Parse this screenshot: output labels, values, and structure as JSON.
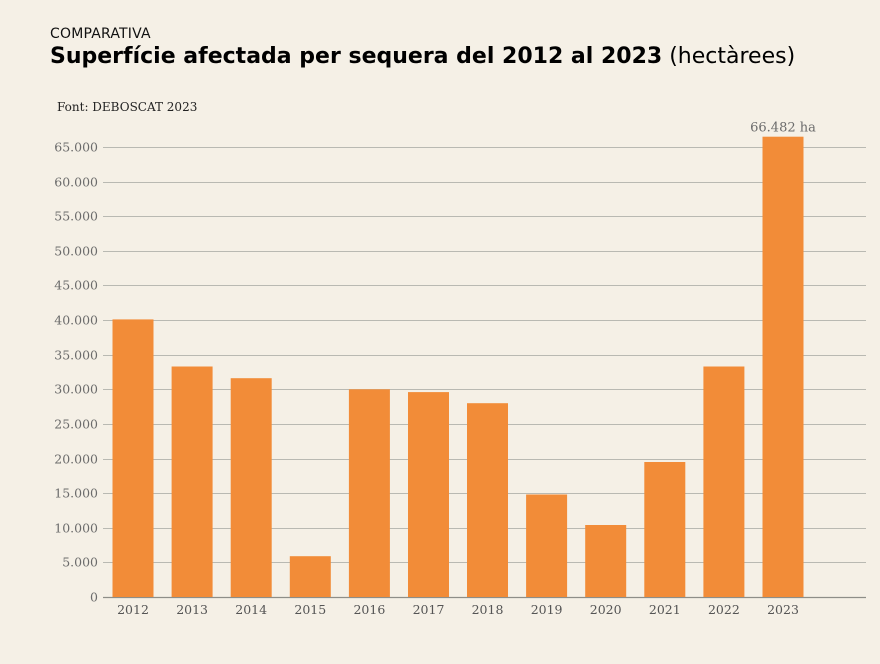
{
  "kicker": "COMPARATIVA",
  "title": {
    "main": "Superfície afectada per sequera del 2012 al 2023",
    "unit": "(hectàrees)"
  },
  "source": "Font: DEBOSCAT 2023",
  "colors": {
    "bar": "#f28c38",
    "background": "#f5f0e6",
    "grid": "#b9b9b2"
  },
  "chart_data": {
    "type": "bar",
    "title": "Superfície afectada per sequera del 2012 al 2023 (hectàrees)",
    "xlabel": "",
    "ylabel": "",
    "categories": [
      "2012",
      "2013",
      "2014",
      "2015",
      "2016",
      "2017",
      "2018",
      "2019",
      "2020",
      "2021",
      "2022",
      "2023"
    ],
    "values": [
      40100,
      33300,
      31600,
      5900,
      30000,
      29600,
      28000,
      14800,
      10400,
      19500,
      33300,
      66482
    ],
    "ylim": [
      0,
      65000
    ],
    "yticks": [
      0,
      5000,
      10000,
      15000,
      20000,
      25000,
      30000,
      35000,
      40000,
      45000,
      50000,
      55000,
      60000,
      65000
    ],
    "ytick_labels": [
      "0",
      "5.000",
      "10.000",
      "15.000",
      "20.000",
      "25.000",
      "30.000",
      "35.000",
      "40.000",
      "45.000",
      "50.000",
      "55.000",
      "60.000",
      "65.000"
    ],
    "grid": true,
    "legend": "none",
    "annotations": [
      {
        "category": "2023",
        "text": "66.482 ha"
      }
    ]
  }
}
